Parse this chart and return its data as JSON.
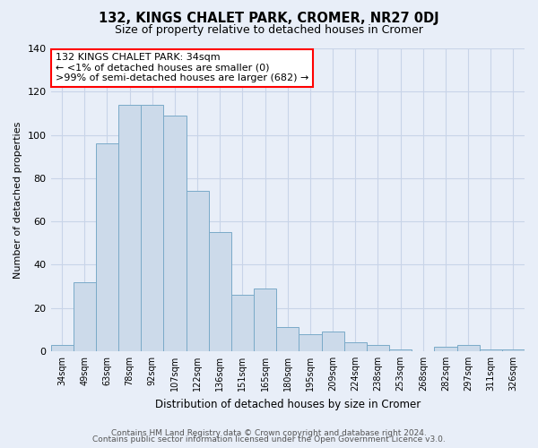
{
  "title": "132, KINGS CHALET PARK, CROMER, NR27 0DJ",
  "subtitle": "Size of property relative to detached houses in Cromer",
  "xlabel": "Distribution of detached houses by size in Cromer",
  "ylabel": "Number of detached properties",
  "bar_color": "#ccdaea",
  "bar_edge_color": "#7aaac8",
  "bg_color": "#e8eef8",
  "plot_bg_color": "#e8eef8",
  "categories": [
    "34sqm",
    "49sqm",
    "63sqm",
    "78sqm",
    "92sqm",
    "107sqm",
    "122sqm",
    "136sqm",
    "151sqm",
    "165sqm",
    "180sqm",
    "195sqm",
    "209sqm",
    "224sqm",
    "238sqm",
    "253sqm",
    "268sqm",
    "282sqm",
    "297sqm",
    "311sqm",
    "326sqm"
  ],
  "values": [
    3,
    32,
    96,
    114,
    114,
    109,
    74,
    55,
    26,
    29,
    11,
    8,
    9,
    4,
    3,
    1,
    0,
    2,
    3,
    1,
    1
  ],
  "ylim": [
    0,
    140
  ],
  "yticks": [
    0,
    20,
    40,
    60,
    80,
    100,
    120,
    140
  ],
  "annotation_title": "132 KINGS CHALET PARK: 34sqm",
  "annotation_line1": "← <1% of detached houses are smaller (0)",
  "annotation_line2": ">99% of semi-detached houses are larger (682) →",
  "footer_line1": "Contains HM Land Registry data © Crown copyright and database right 2024.",
  "footer_line2": "Contains public sector information licensed under the Open Government Licence v3.0.",
  "grid_color": "#c8d4e8",
  "ann_box_color": "white",
  "ann_edge_color": "red"
}
